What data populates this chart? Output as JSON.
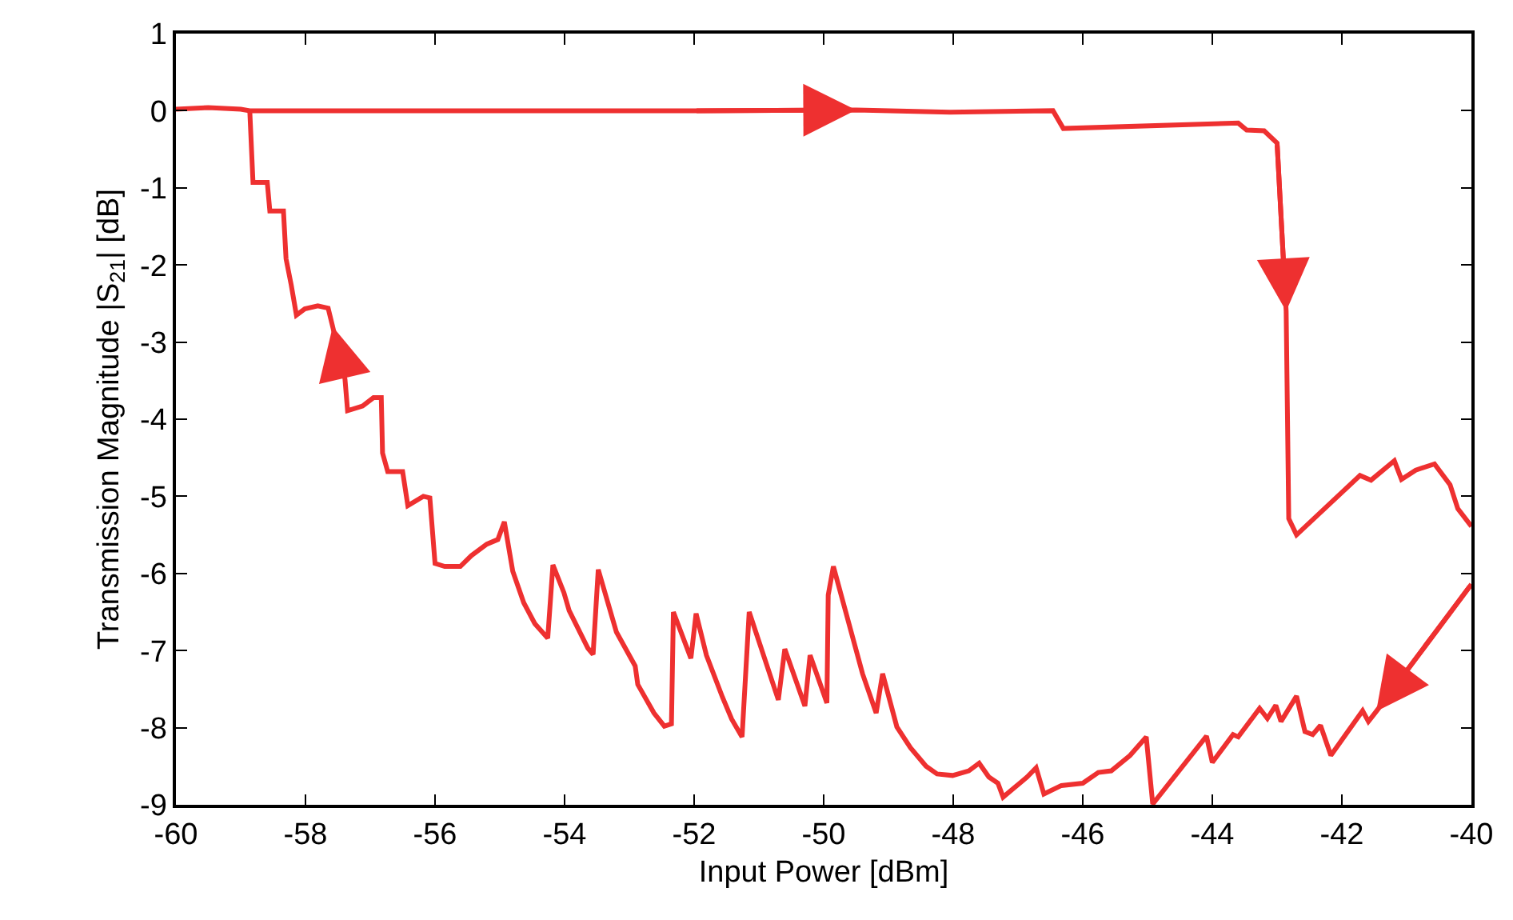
{
  "chart_data": {
    "type": "line",
    "xlabel": "Input Power [dBm]",
    "ylabel": "Transmission Magnitude |S$_{21}$| [dB]",
    "xlim": [
      -60,
      -40
    ],
    "xticks": [
      -60,
      -58,
      -56,
      -54,
      -52,
      -50,
      -48,
      -46,
      -44,
      -42,
      -40
    ],
    "ylim": [
      -9,
      1
    ],
    "yticks": [
      -9,
      -8,
      -7,
      -6,
      -5,
      -4,
      -3,
      -2,
      -1,
      0,
      1
    ],
    "marker": "none",
    "line_style": "solid",
    "series": [
      {
        "color": "#ee3030",
        "x": [
          -60,
          -59.5,
          -59,
          -58.86,
          -58,
          -56,
          -54,
          -52,
          -49.5,
          -48.05,
          -46.46,
          -46.3,
          -43.6,
          -43.47,
          -43.2,
          -43.0,
          -42.86,
          -42.82,
          -42.7,
          -41.72,
          -41.55,
          -41.19,
          -41.08,
          -40.86,
          -40.57,
          -40.33,
          -40.21,
          -40
        ],
        "values": [
          0.02,
          0.04,
          0.02,
          0.0,
          0.0,
          0.0,
          0.0,
          0.0,
          0.01,
          -0.02,
          0.0,
          -0.23,
          -0.16,
          -0.25,
          -0.26,
          -0.42,
          -2.6,
          -5.29,
          -5.5,
          -4.73,
          -4.79,
          -4.54,
          -4.78,
          -4.66,
          -4.58,
          -4.85,
          -5.16,
          -5.39
        ]
      },
      {
        "color": "#ee3030",
        "x": [
          -40,
          -41.47,
          -41.59,
          -41.68,
          -42.17,
          -42.33,
          -42.45,
          -42.57,
          -42.7,
          -42.94,
          -43.02,
          -43.15,
          -43.27,
          -43.6,
          -43.68,
          -44.0,
          -44.09,
          -44.92,
          -45.02,
          -45.27,
          -45.56,
          -45.76,
          -46.0,
          -46.33,
          -46.6,
          -46.72,
          -46.86,
          -47.23,
          -47.31,
          -47.45,
          -47.6,
          -47.76,
          -48.01,
          -48.25,
          -48.42,
          -48.66,
          -48.87,
          -49.09,
          -49.19,
          -49.4,
          -49.85,
          -49.93,
          -49.95,
          -50.21,
          -50.29,
          -50.6,
          -50.7,
          -51.15,
          -51.26,
          -51.42,
          -51.56,
          -51.81,
          -51.97,
          -52.05,
          -52.32,
          -52.35,
          -52.46,
          -52.62,
          -52.87,
          -52.91,
          -53.2,
          -53.48,
          -53.56,
          -53.64,
          -53.93,
          -54.01,
          -54.18,
          -54.26,
          -54.46,
          -54.63,
          -54.8,
          -54.93,
          -55.03,
          -55.2,
          -55.44,
          -55.61,
          -55.85,
          -56.0,
          -56.08,
          -56.18,
          -56.42,
          -56.5,
          -56.73,
          -56.81,
          -56.83,
          -56.95,
          -57.12,
          -57.35,
          -57.39,
          -57.58,
          -57.65,
          -57.81,
          -58.01,
          -58.14,
          -58.22,
          -58.3,
          -58.34,
          -58.55,
          -58.59,
          -58.81,
          -58.86
        ],
        "values": [
          -6.14,
          -7.79,
          -7.92,
          -7.78,
          -8.36,
          -7.97,
          -8.09,
          -8.05,
          -7.59,
          -7.92,
          -7.71,
          -7.88,
          -7.75,
          -8.12,
          -8.09,
          -8.45,
          -8.11,
          -8.99,
          -8.12,
          -8.36,
          -8.56,
          -8.58,
          -8.72,
          -8.75,
          -8.86,
          -8.52,
          -8.64,
          -8.9,
          -8.72,
          -8.64,
          -8.46,
          -8.56,
          -8.62,
          -8.6,
          -8.5,
          -8.26,
          -7.99,
          -7.3,
          -7.81,
          -7.3,
          -5.91,
          -6.28,
          -7.68,
          -7.06,
          -7.72,
          -6.98,
          -7.64,
          -6.5,
          -8.12,
          -7.89,
          -7.61,
          -7.06,
          -6.52,
          -7.1,
          -6.5,
          -7.95,
          -7.98,
          -7.81,
          -7.44,
          -7.2,
          -6.76,
          -5.95,
          -7.05,
          -6.97,
          -6.48,
          -6.25,
          -5.89,
          -6.84,
          -6.65,
          -6.38,
          -5.97,
          -5.33,
          -5.56,
          -5.62,
          -5.77,
          -5.91,
          -5.91,
          -5.87,
          -5.02,
          -5.0,
          -5.12,
          -4.68,
          -4.68,
          -4.44,
          -3.72,
          -3.72,
          -3.83,
          -3.89,
          -3.48,
          -2.8,
          -2.56,
          -2.53,
          -2.57,
          -2.65,
          -2.26,
          -1.92,
          -1.3,
          -1.3,
          -0.93,
          -0.93,
          0.0
        ]
      }
    ]
  }
}
